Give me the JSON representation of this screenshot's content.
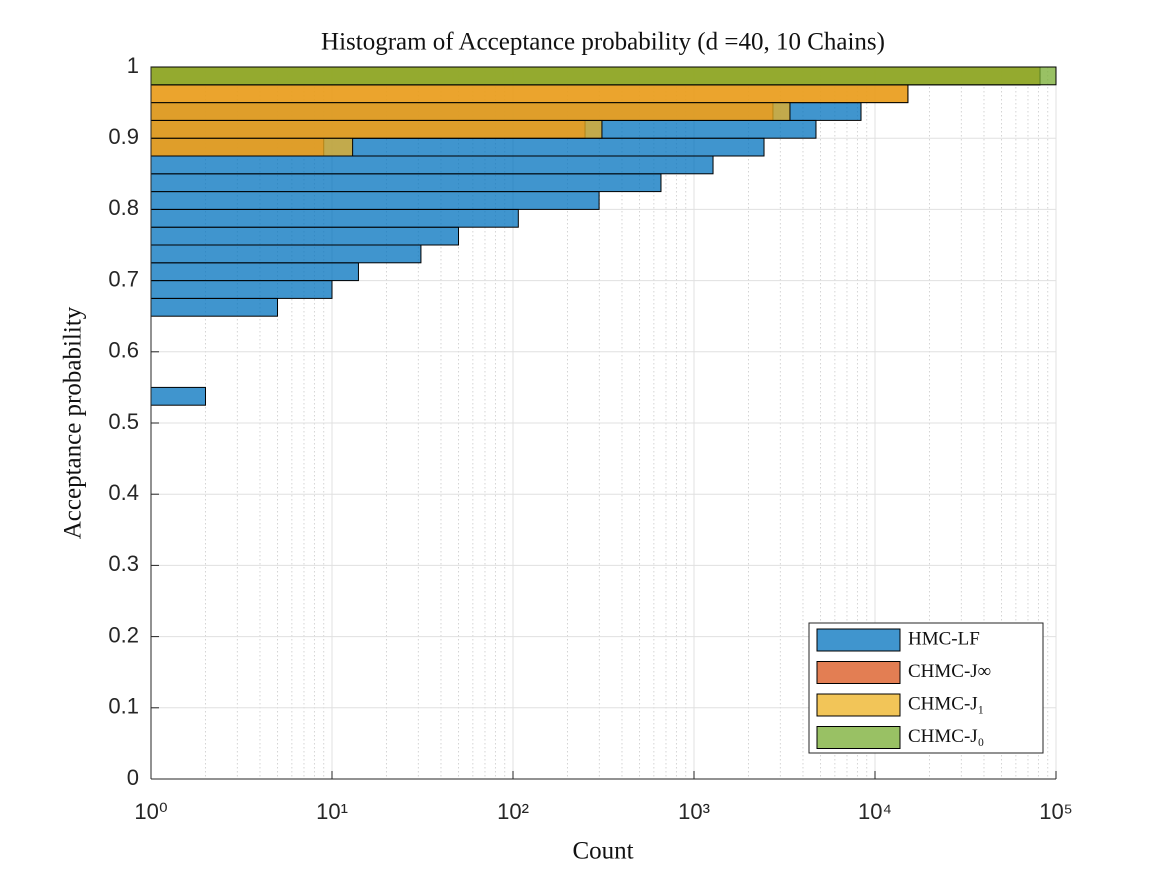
{
  "chart_data": {
    "type": "histogram",
    "orientation": "horizontal",
    "title": "Histogram of Acceptance probability (d =40, 10 Chains)",
    "xlabel": "Count",
    "ylabel": "Acceptance probability",
    "xscale": "log",
    "xlim": [
      1,
      100000
    ],
    "xticks": [
      {
        "value": 1,
        "label": "10⁰"
      },
      {
        "value": 10,
        "label": "10¹"
      },
      {
        "value": 100,
        "label": "10²"
      },
      {
        "value": 1000,
        "label": "10³"
      },
      {
        "value": 10000,
        "label": "10⁴"
      },
      {
        "value": 100000,
        "label": "10⁵"
      }
    ],
    "ylim": [
      0,
      1
    ],
    "yticks": [
      0,
      0.1,
      0.2,
      0.3,
      0.4,
      0.5,
      0.6,
      0.7,
      0.8,
      0.9,
      1
    ],
    "grid": true,
    "minor_grid": true,
    "legend": "lower right",
    "bins": [
      0,
      0.025,
      0.05,
      0.075,
      0.1,
      0.125,
      0.15,
      0.175,
      0.2,
      0.225,
      0.25,
      0.275,
      0.3,
      0.325,
      0.35,
      0.375,
      0.4,
      0.425,
      0.45,
      0.475,
      0.5,
      0.525,
      0.55,
      0.575,
      0.6,
      0.625,
      0.65,
      0.675,
      0.7,
      0.725,
      0.75,
      0.775,
      0.8,
      0.825,
      0.85,
      0.875,
      0.9,
      0.925,
      0.95,
      0.975,
      1
    ],
    "series": [
      {
        "name": "HMC-LF",
        "color": "#0072bd",
        "values": [
          0,
          0,
          0,
          0,
          0,
          0,
          0,
          0,
          0,
          0,
          0,
          0,
          0,
          0,
          0,
          0,
          0,
          0,
          0,
          0,
          0,
          2,
          1,
          0,
          0,
          0,
          5,
          10,
          14,
          31,
          50,
          107,
          299,
          657,
          1274,
          2437,
          4720,
          8370,
          0,
          0
        ]
      },
      {
        "name": "CHMC-J∞",
        "color": "#d95319",
        "values": [
          0,
          0,
          0,
          0,
          0,
          0,
          0,
          0,
          0,
          0,
          0,
          0,
          0,
          0,
          0,
          0,
          0,
          0,
          0,
          0,
          0,
          0,
          0,
          0,
          0,
          0,
          0,
          0,
          0,
          0,
          0,
          0,
          0,
          0,
          0,
          9,
          250,
          2730,
          15200,
          81600
        ]
      },
      {
        "name": "CHMC-J₁",
        "color": "#edb120",
        "values": [
          0,
          0,
          0,
          0,
          0,
          0,
          0,
          0,
          0,
          0,
          0,
          0,
          0,
          0,
          0,
          0,
          0,
          0,
          0,
          0,
          0,
          0,
          0,
          0,
          0,
          0,
          0,
          0,
          0,
          0,
          0,
          0,
          0,
          0,
          0,
          13,
          310,
          3390,
          15200,
          81600
        ]
      },
      {
        "name": "CHMC-J₀",
        "color": "#77ac30",
        "values": [
          0,
          0,
          0,
          0,
          0,
          0,
          0,
          0,
          0,
          0,
          0,
          0,
          0,
          0,
          0,
          0,
          0,
          0,
          0,
          0,
          0,
          0,
          0,
          0,
          0,
          0,
          0,
          0,
          0,
          0,
          0,
          0,
          0,
          0,
          0,
          0,
          0,
          0,
          0,
          100000
        ]
      }
    ]
  }
}
